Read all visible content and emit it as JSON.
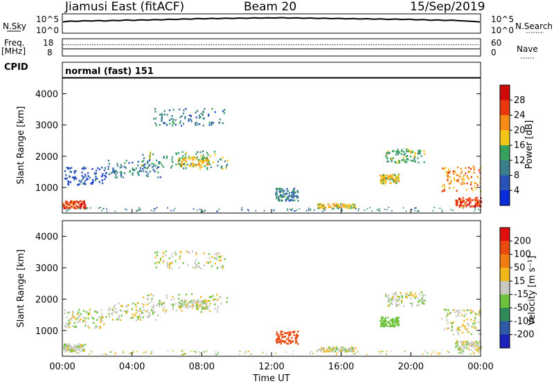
{
  "header": {
    "station": "Jiamusi East (fitACF)",
    "beam": "Beam 20",
    "date": "15/Sep/2019"
  },
  "left_labels": {
    "nsky": "N.Sky",
    "freq": "Freq.",
    "freq_unit": "[MHz]",
    "cpid": "CPID"
  },
  "right_labels": {
    "nsearch": "N.Search",
    "nave": "Nave"
  },
  "mode_label": "normal (fast) 151",
  "chart_data": [
    {
      "type": "line",
      "name": "noise",
      "left_ticks": [
        "10^5",
        "10^0"
      ],
      "right_ticks": [
        "10^5",
        "10^0"
      ],
      "series": [
        {
          "values": [
            0.55,
            0.6,
            0.58,
            0.62,
            0.6,
            0.63,
            0.6,
            0.64,
            0.62,
            0.66,
            0.63,
            0.67,
            0.65,
            0.68,
            0.66,
            0.7,
            0.68,
            0.72,
            0.7,
            0.74,
            0.72,
            0.75,
            0.73,
            0.76,
            0.74,
            0.77,
            0.75,
            0.78,
            0.76,
            0.78,
            0.77,
            0.79,
            0.76,
            0.78,
            0.75,
            0.77,
            0.74,
            0.76,
            0.73,
            0.75,
            0.72,
            0.74,
            0.71,
            0.73,
            0.7,
            0.72,
            0.69,
            0.71,
            0.68,
            0.7,
            0.66,
            0.68,
            0.64,
            0.66,
            0.63,
            0.65,
            0.62,
            0.6,
            0.58,
            0.55
          ]
        }
      ]
    },
    {
      "type": "line",
      "name": "frequency",
      "left_ticks": [
        "18",
        "8"
      ],
      "right_ticks": [
        "60",
        "0"
      ],
      "ylim": [
        8,
        18
      ],
      "freq_level": 12,
      "nave_level": 40
    },
    {
      "type": "heatmap",
      "quantity": "power",
      "ylabel": "Slant Range [km]",
      "yticks": [
        "4000",
        "3000",
        "2000",
        "1000"
      ],
      "ylim": [
        180,
        4500
      ],
      "colorbar_label": "Power [dB]",
      "colorbar_ticks": [
        "28",
        "24",
        "20",
        "16",
        "12",
        "8",
        "4"
      ],
      "colors": [
        "#0a2bd8",
        "#2a52b8",
        "#3c7f8c",
        "#37a25e",
        "#f4c61a",
        "#f58b12",
        "#e8380e",
        "#d00a0a"
      ]
    },
    {
      "type": "heatmap",
      "quantity": "velocity",
      "ylabel": "Slant Range [km]",
      "yticks": [
        "4000",
        "3000",
        "2000",
        "1000"
      ],
      "ylim": [
        180,
        4500
      ],
      "xticks": [
        "00:00",
        "04:00",
        "08:00",
        "12:00",
        "16:00",
        "20:00",
        "00:00"
      ],
      "xlabel": "Time UT",
      "colorbar_label": "Velocity [m s⁻¹]",
      "colorbar_ticks": [
        "200",
        "100",
        "50",
        "15",
        "-15",
        "-50",
        "-100",
        "-200"
      ],
      "colors": [
        "#1b22b8",
        "#2e5aa8",
        "#2e8c5a",
        "#6cc23a",
        "#c8c8c0",
        "#f2b81a",
        "#f07c12",
        "#e84b10",
        "#e01010"
      ]
    }
  ],
  "echo_regions": [
    {
      "t0": 0.1,
      "t1": 2.5,
      "r0": 1100,
      "r1": 1700,
      "c": 1
    },
    {
      "t0": 2.6,
      "t1": 5.6,
      "r0": 1350,
      "r1": 1900,
      "c": 2
    },
    {
      "t0": 4.5,
      "t1": 9.5,
      "r0": 1600,
      "r1": 2200,
      "c": 3
    },
    {
      "t0": 6.6,
      "t1": 8.4,
      "r0": 1700,
      "r1": 2000,
      "c": 4
    },
    {
      "t0": 5.2,
      "t1": 9.3,
      "r0": 3000,
      "r1": 3550,
      "c": 2
    },
    {
      "t0": 0.0,
      "t1": 1.3,
      "r0": 350,
      "r1": 600,
      "c": 6
    },
    {
      "t0": 12.2,
      "t1": 13.5,
      "r0": 600,
      "r1": 1000,
      "c": 2
    },
    {
      "t0": 14.6,
      "t1": 16.8,
      "r0": 350,
      "r1": 500,
      "c": 4
    },
    {
      "t0": 18.2,
      "t1": 19.3,
      "r0": 1150,
      "r1": 1450,
      "c": 4
    },
    {
      "t0": 18.5,
      "t1": 20.8,
      "r0": 1800,
      "r1": 2250,
      "c": 3
    },
    {
      "t0": 21.7,
      "t1": 24.0,
      "r0": 900,
      "r1": 1700,
      "c": 5
    },
    {
      "t0": 22.5,
      "t1": 24.0,
      "r0": 400,
      "r1": 700,
      "c": 6
    }
  ]
}
